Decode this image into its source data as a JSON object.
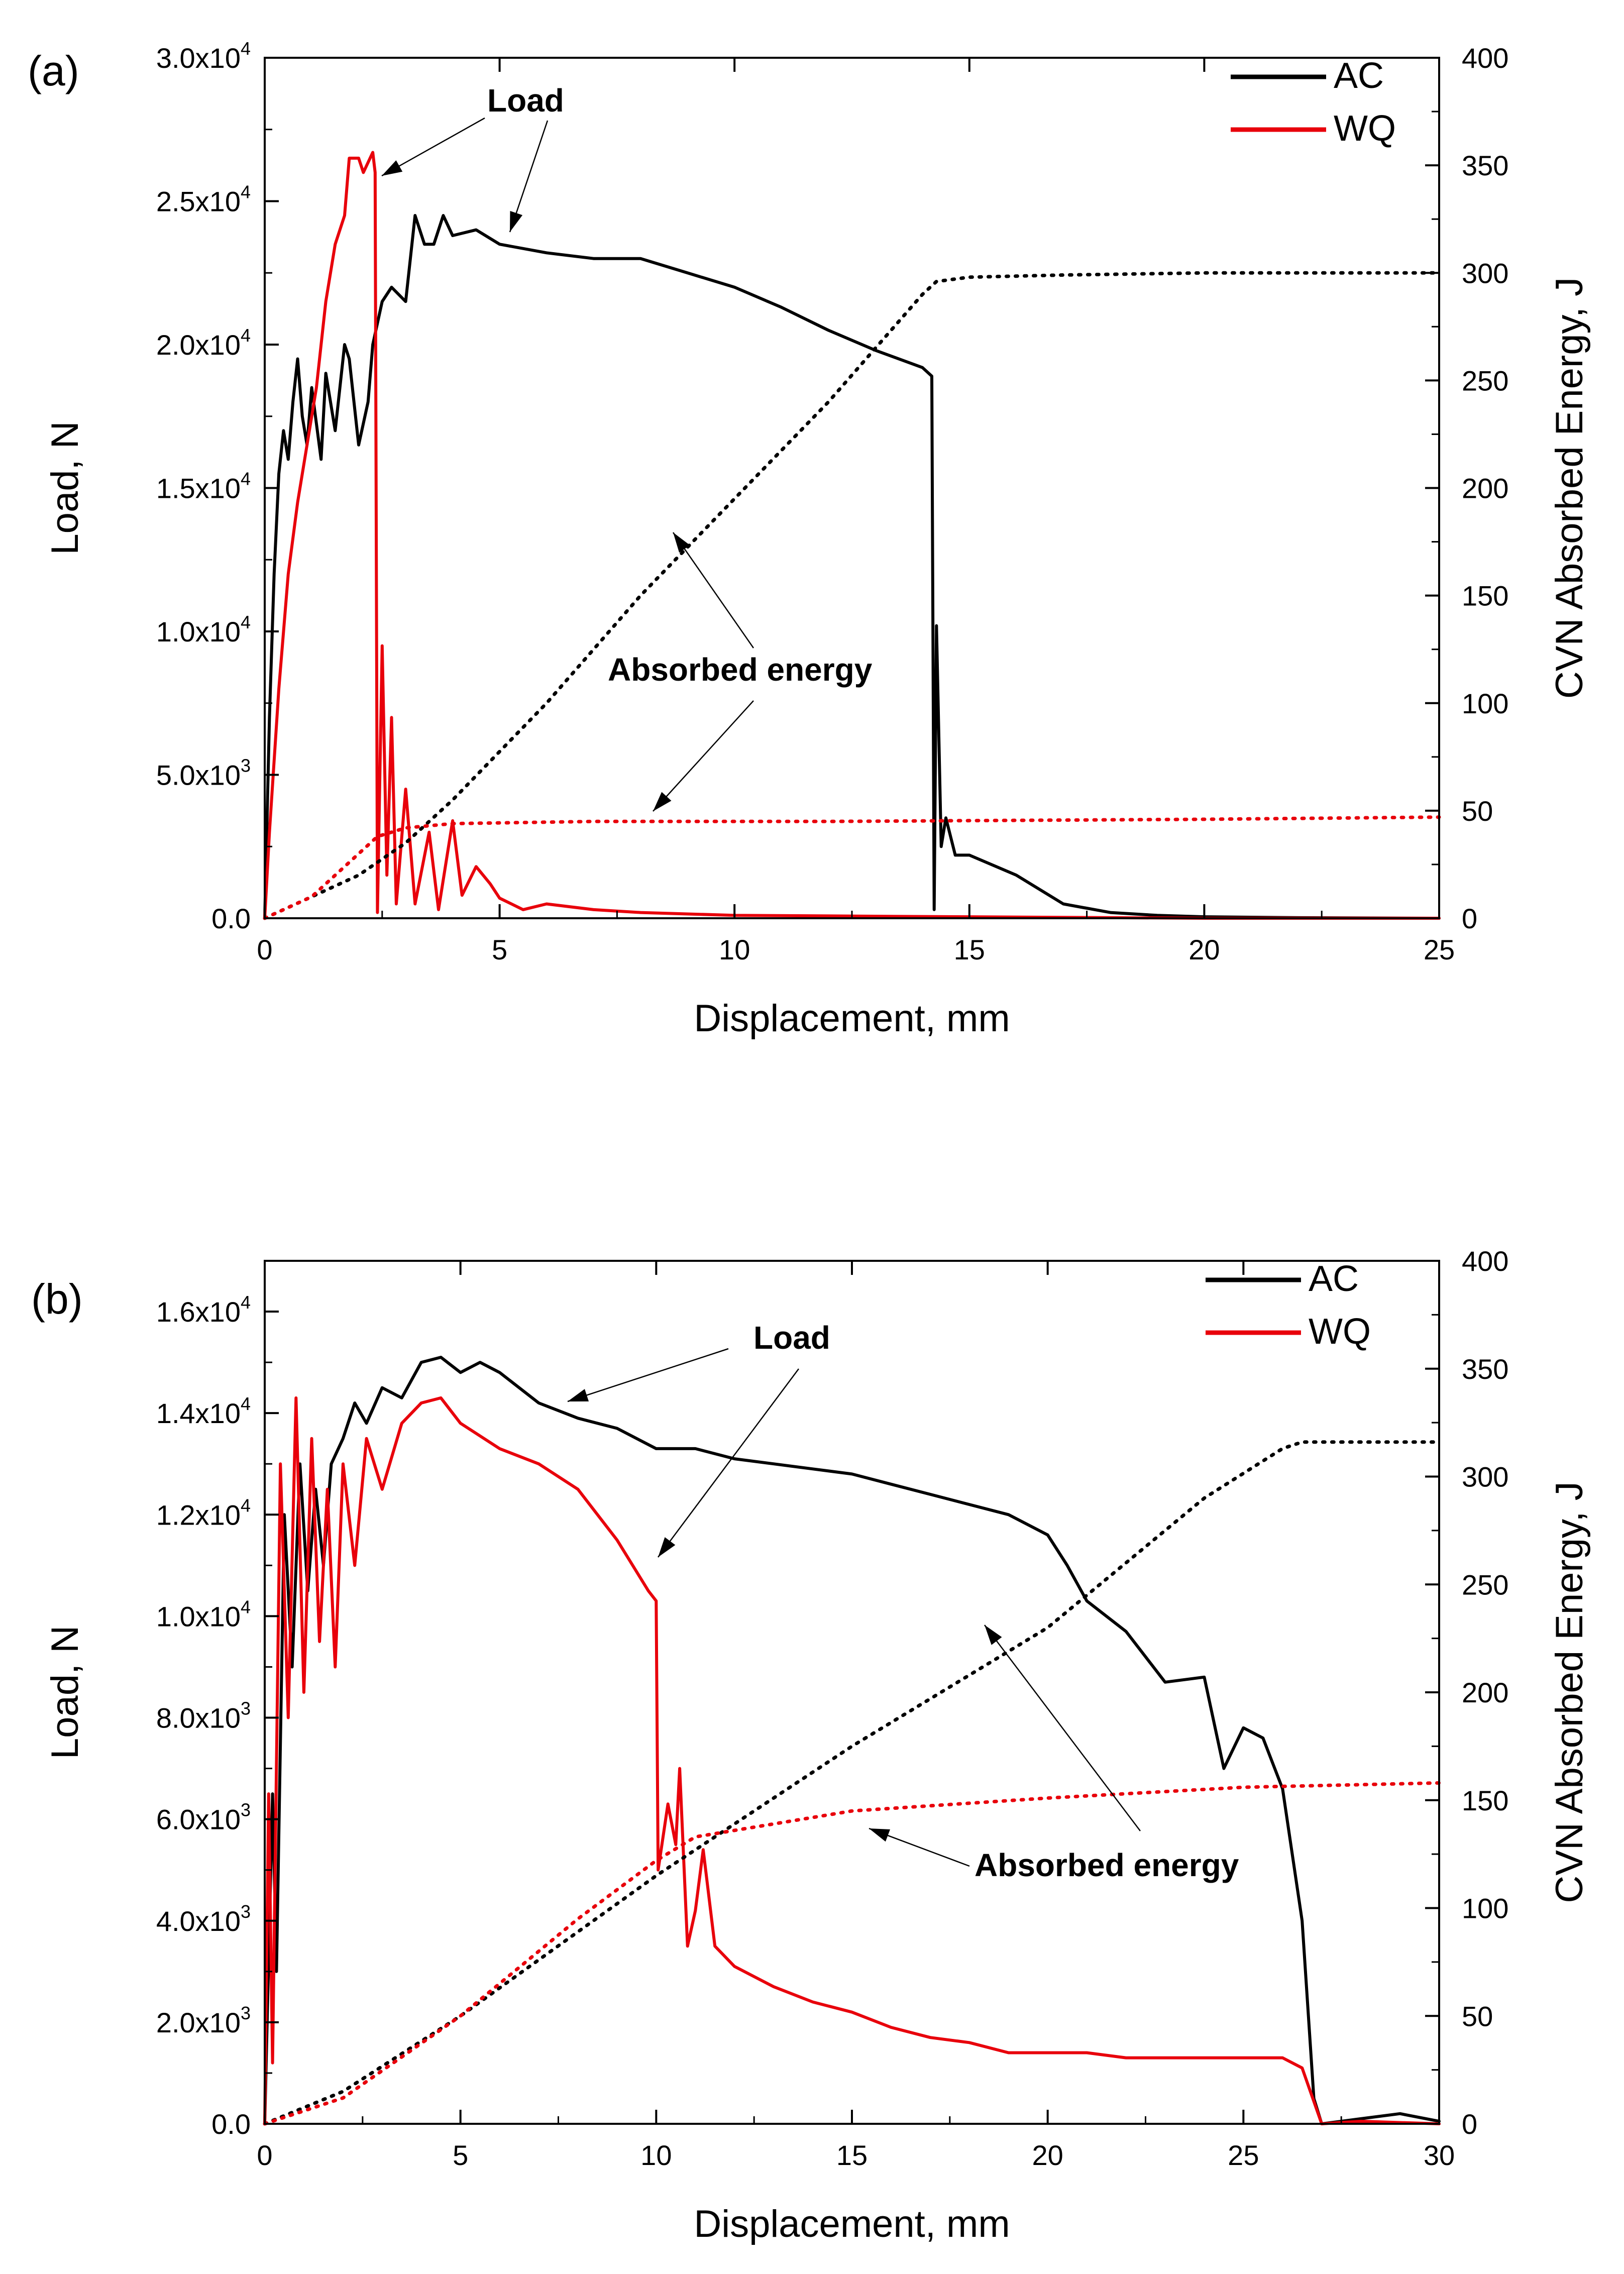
{
  "colors": {
    "AC": "#000000",
    "WQ": "#e8000b"
  },
  "chart_data": [
    {
      "type": "line",
      "panel_label": "(a)",
      "xlabel": "Displacement, mm",
      "ylabel": "Load, N",
      "y2label": "CVN Absorbed Energy, J",
      "xlim": [
        0,
        25
      ],
      "ylim": [
        0,
        30000
      ],
      "y2lim": [
        0,
        400
      ],
      "x_ticks": [
        "0",
        "5",
        "10",
        "15",
        "20",
        "25"
      ],
      "y_ticks": [
        {
          "mant": "0.0",
          "exp": ""
        },
        {
          "mant": "5.0x10",
          "exp": "3"
        },
        {
          "mant": "1.0x10",
          "exp": "4"
        },
        {
          "mant": "1.5x10",
          "exp": "4"
        },
        {
          "mant": "2.0x10",
          "exp": "4"
        },
        {
          "mant": "2.5x10",
          "exp": "4"
        },
        {
          "mant": "3.0x10",
          "exp": "4"
        }
      ],
      "y2_ticks": [
        "0",
        "50",
        "100",
        "150",
        "200",
        "250",
        "300",
        "350",
        "400"
      ],
      "legend": [
        "AC",
        "WQ"
      ],
      "annotations": [
        "Load",
        "Absorbed energy"
      ],
      "series": [
        {
          "name": "AC",
          "kind": "load",
          "axis": "left",
          "points": [
            [
              0,
              0
            ],
            [
              0.1,
              7000
            ],
            [
              0.2,
              12000
            ],
            [
              0.3,
              15500
            ],
            [
              0.4,
              17000
            ],
            [
              0.5,
              16000
            ],
            [
              0.6,
              18000
            ],
            [
              0.7,
              19500
            ],
            [
              0.8,
              17500
            ],
            [
              0.9,
              16500
            ],
            [
              1.0,
              18500
            ],
            [
              1.2,
              16000
            ],
            [
              1.3,
              19000
            ],
            [
              1.5,
              17000
            ],
            [
              1.7,
              20000
            ],
            [
              1.8,
              19500
            ],
            [
              2.0,
              16500
            ],
            [
              2.2,
              18000
            ],
            [
              2.3,
              20000
            ],
            [
              2.5,
              21500
            ],
            [
              2.7,
              22000
            ],
            [
              3.0,
              21500
            ],
            [
              3.2,
              24500
            ],
            [
              3.4,
              23500
            ],
            [
              3.6,
              23500
            ],
            [
              3.8,
              24500
            ],
            [
              4.0,
              23800
            ],
            [
              4.5,
              24000
            ],
            [
              5,
              23500
            ],
            [
              6,
              23200
            ],
            [
              7,
              23000
            ],
            [
              8,
              23000
            ],
            [
              9,
              22500
            ],
            [
              10,
              22000
            ],
            [
              11,
              21300
            ],
            [
              12,
              20500
            ],
            [
              13,
              19800
            ],
            [
              14,
              19200
            ],
            [
              14.2,
              18900
            ],
            [
              14.25,
              300
            ],
            [
              14.3,
              10200
            ],
            [
              14.4,
              2500
            ],
            [
              14.5,
              3500
            ],
            [
              14.7,
              2200
            ],
            [
              15,
              2200
            ],
            [
              16,
              1500
            ],
            [
              17,
              500
            ],
            [
              18,
              200
            ],
            [
              19,
              100
            ],
            [
              20,
              50
            ],
            [
              22,
              20
            ],
            [
              25,
              0
            ]
          ]
        },
        {
          "name": "WQ",
          "kind": "load",
          "axis": "left",
          "points": [
            [
              0,
              0
            ],
            [
              0.1,
              3000
            ],
            [
              0.3,
              8000
            ],
            [
              0.5,
              12000
            ],
            [
              0.7,
              14500
            ],
            [
              0.9,
              16500
            ],
            [
              1.1,
              18500
            ],
            [
              1.3,
              21500
            ],
            [
              1.5,
              23500
            ],
            [
              1.7,
              24500
            ],
            [
              1.8,
              26500
            ],
            [
              2.0,
              26500
            ],
            [
              2.1,
              26000
            ],
            [
              2.3,
              26700
            ],
            [
              2.35,
              26000
            ],
            [
              2.4,
              200
            ],
            [
              2.5,
              9500
            ],
            [
              2.6,
              1500
            ],
            [
              2.7,
              7000
            ],
            [
              2.8,
              500
            ],
            [
              3.0,
              4500
            ],
            [
              3.2,
              500
            ],
            [
              3.5,
              3000
            ],
            [
              3.7,
              300
            ],
            [
              4.0,
              3400
            ],
            [
              4.2,
              800
            ],
            [
              4.5,
              1800
            ],
            [
              4.8,
              1200
            ],
            [
              5,
              700
            ],
            [
              5.5,
              300
            ],
            [
              6,
              500
            ],
            [
              7,
              300
            ],
            [
              8,
              200
            ],
            [
              10,
              100
            ],
            [
              15,
              50
            ],
            [
              20,
              0
            ],
            [
              25,
              0
            ]
          ]
        },
        {
          "name": "AC",
          "kind": "energy",
          "axis": "right",
          "points": [
            [
              0,
              0
            ],
            [
              2,
              20
            ],
            [
              3,
              35
            ],
            [
              4,
              55
            ],
            [
              6,
              100
            ],
            [
              8,
              150
            ],
            [
              10,
              195
            ],
            [
              12,
              240
            ],
            [
              14,
              290
            ],
            [
              14.3,
              296
            ],
            [
              15,
              298
            ],
            [
              17,
              299
            ],
            [
              20,
              300
            ],
            [
              25,
              300
            ]
          ]
        },
        {
          "name": "WQ",
          "kind": "energy",
          "axis": "right",
          "points": [
            [
              0,
              0
            ],
            [
              1,
              10
            ],
            [
              2,
              30
            ],
            [
              2.4,
              38
            ],
            [
              3,
              42
            ],
            [
              4,
              44
            ],
            [
              7,
              45
            ],
            [
              12,
              45
            ],
            [
              20,
              46
            ],
            [
              25,
              47
            ]
          ]
        }
      ]
    },
    {
      "type": "line",
      "panel_label": "(b)",
      "xlabel": "Displacement, mm",
      "ylabel": "Load, N",
      "y2label": "CVN Absorbed Energy, J",
      "xlim": [
        0,
        30
      ],
      "ylim": [
        0,
        17000
      ],
      "y2lim": [
        0,
        400
      ],
      "x_ticks": [
        "0",
        "5",
        "10",
        "15",
        "20",
        "25",
        "30"
      ],
      "y_ticks": [
        {
          "mant": "0.0",
          "exp": ""
        },
        {
          "mant": "2.0x10",
          "exp": "3"
        },
        {
          "mant": "4.0x10",
          "exp": "3"
        },
        {
          "mant": "6.0x10",
          "exp": "3"
        },
        {
          "mant": "8.0x10",
          "exp": "3"
        },
        {
          "mant": "1.0x10",
          "exp": "4"
        },
        {
          "mant": "1.2x10",
          "exp": "4"
        },
        {
          "mant": "1.4x10",
          "exp": "4"
        },
        {
          "mant": "1.6x10",
          "exp": "4"
        }
      ],
      "y2_ticks": [
        "0",
        "50",
        "100",
        "150",
        "200",
        "250",
        "300",
        "350",
        "400"
      ],
      "legend": [
        "AC",
        "WQ"
      ],
      "annotations": [
        "Load",
        "Absorbed energy"
      ],
      "series": [
        {
          "name": "AC",
          "kind": "load",
          "axis": "left",
          "points": [
            [
              0,
              0
            ],
            [
              0.2,
              6500
            ],
            [
              0.3,
              3000
            ],
            [
              0.5,
              12000
            ],
            [
              0.7,
              9000
            ],
            [
              0.9,
              13000
            ],
            [
              1.1,
              10500
            ],
            [
              1.3,
              12500
            ],
            [
              1.5,
              11000
            ],
            [
              1.7,
              13000
            ],
            [
              2,
              13500
            ],
            [
              2.3,
              14200
            ],
            [
              2.6,
              13800
            ],
            [
              3,
              14500
            ],
            [
              3.5,
              14300
            ],
            [
              4,
              15000
            ],
            [
              4.5,
              15100
            ],
            [
              5,
              14800
            ],
            [
              5.5,
              15000
            ],
            [
              6,
              14800
            ],
            [
              7,
              14200
            ],
            [
              8,
              13900
            ],
            [
              9,
              13700
            ],
            [
              10,
              13300
            ],
            [
              11,
              13300
            ],
            [
              12,
              13100
            ],
            [
              13,
              13000
            ],
            [
              14,
              12900
            ],
            [
              15,
              12800
            ],
            [
              16,
              12600
            ],
            [
              17,
              12400
            ],
            [
              18,
              12200
            ],
            [
              19,
              12000
            ],
            [
              20,
              11600
            ],
            [
              20.5,
              11000
            ],
            [
              21,
              10300
            ],
            [
              22,
              9700
            ],
            [
              23,
              8700
            ],
            [
              24,
              8800
            ],
            [
              24.5,
              7000
            ],
            [
              25,
              7800
            ],
            [
              25.5,
              7600
            ],
            [
              26,
              6600
            ],
            [
              26.5,
              4000
            ],
            [
              26.8,
              500
            ],
            [
              27,
              0
            ],
            [
              28,
              100
            ],
            [
              29,
              200
            ],
            [
              30,
              50
            ]
          ]
        },
        {
          "name": "WQ",
          "kind": "load",
          "axis": "left",
          "points": [
            [
              0,
              0
            ],
            [
              0.1,
              6500
            ],
            [
              0.2,
              1200
            ],
            [
              0.4,
              13000
            ],
            [
              0.6,
              8000
            ],
            [
              0.8,
              14300
            ],
            [
              1.0,
              8500
            ],
            [
              1.2,
              13500
            ],
            [
              1.4,
              9500
            ],
            [
              1.6,
              12500
            ],
            [
              1.8,
              9000
            ],
            [
              2.0,
              13000
            ],
            [
              2.3,
              11000
            ],
            [
              2.6,
              13500
            ],
            [
              3.0,
              12500
            ],
            [
              3.5,
              13800
            ],
            [
              4.0,
              14200
            ],
            [
              4.5,
              14300
            ],
            [
              5,
              13800
            ],
            [
              6,
              13300
            ],
            [
              7,
              13000
            ],
            [
              8,
              12500
            ],
            [
              9,
              11500
            ],
            [
              9.8,
              10500
            ],
            [
              10.0,
              10300
            ],
            [
              10.05,
              5000
            ],
            [
              10.3,
              6300
            ],
            [
              10.5,
              5500
            ],
            [
              10.6,
              7000
            ],
            [
              10.8,
              3500
            ],
            [
              11.0,
              4200
            ],
            [
              11.2,
              5400
            ],
            [
              11.5,
              3500
            ],
            [
              12,
              3100
            ],
            [
              13,
              2700
            ],
            [
              14,
              2400
            ],
            [
              15,
              2200
            ],
            [
              16,
              1900
            ],
            [
              17,
              1700
            ],
            [
              18,
              1600
            ],
            [
              19,
              1400
            ],
            [
              20,
              1400
            ],
            [
              21,
              1400
            ],
            [
              22,
              1300
            ],
            [
              23,
              1300
            ],
            [
              24,
              1300
            ],
            [
              25,
              1300
            ],
            [
              26,
              1300
            ],
            [
              26.5,
              1100
            ],
            [
              27,
              0
            ],
            [
              28,
              50
            ],
            [
              30,
              0
            ]
          ]
        },
        {
          "name": "AC",
          "kind": "energy",
          "axis": "right",
          "points": [
            [
              0,
              0
            ],
            [
              2,
              15
            ],
            [
              5,
              50
            ],
            [
              10,
              115
            ],
            [
              15,
              175
            ],
            [
              20,
              230
            ],
            [
              22,
              260
            ],
            [
              24,
              290
            ],
            [
              26,
              313
            ],
            [
              26.5,
              316
            ],
            [
              28,
              316
            ],
            [
              30,
              316
            ]
          ]
        },
        {
          "name": "WQ",
          "kind": "energy",
          "axis": "right",
          "points": [
            [
              0,
              0
            ],
            [
              2,
              12
            ],
            [
              5,
              50
            ],
            [
              8,
              95
            ],
            [
              10,
              122
            ],
            [
              11,
              133
            ],
            [
              15,
              145
            ],
            [
              20,
              151
            ],
            [
              25,
              156
            ],
            [
              30,
              158
            ]
          ]
        }
      ]
    }
  ]
}
